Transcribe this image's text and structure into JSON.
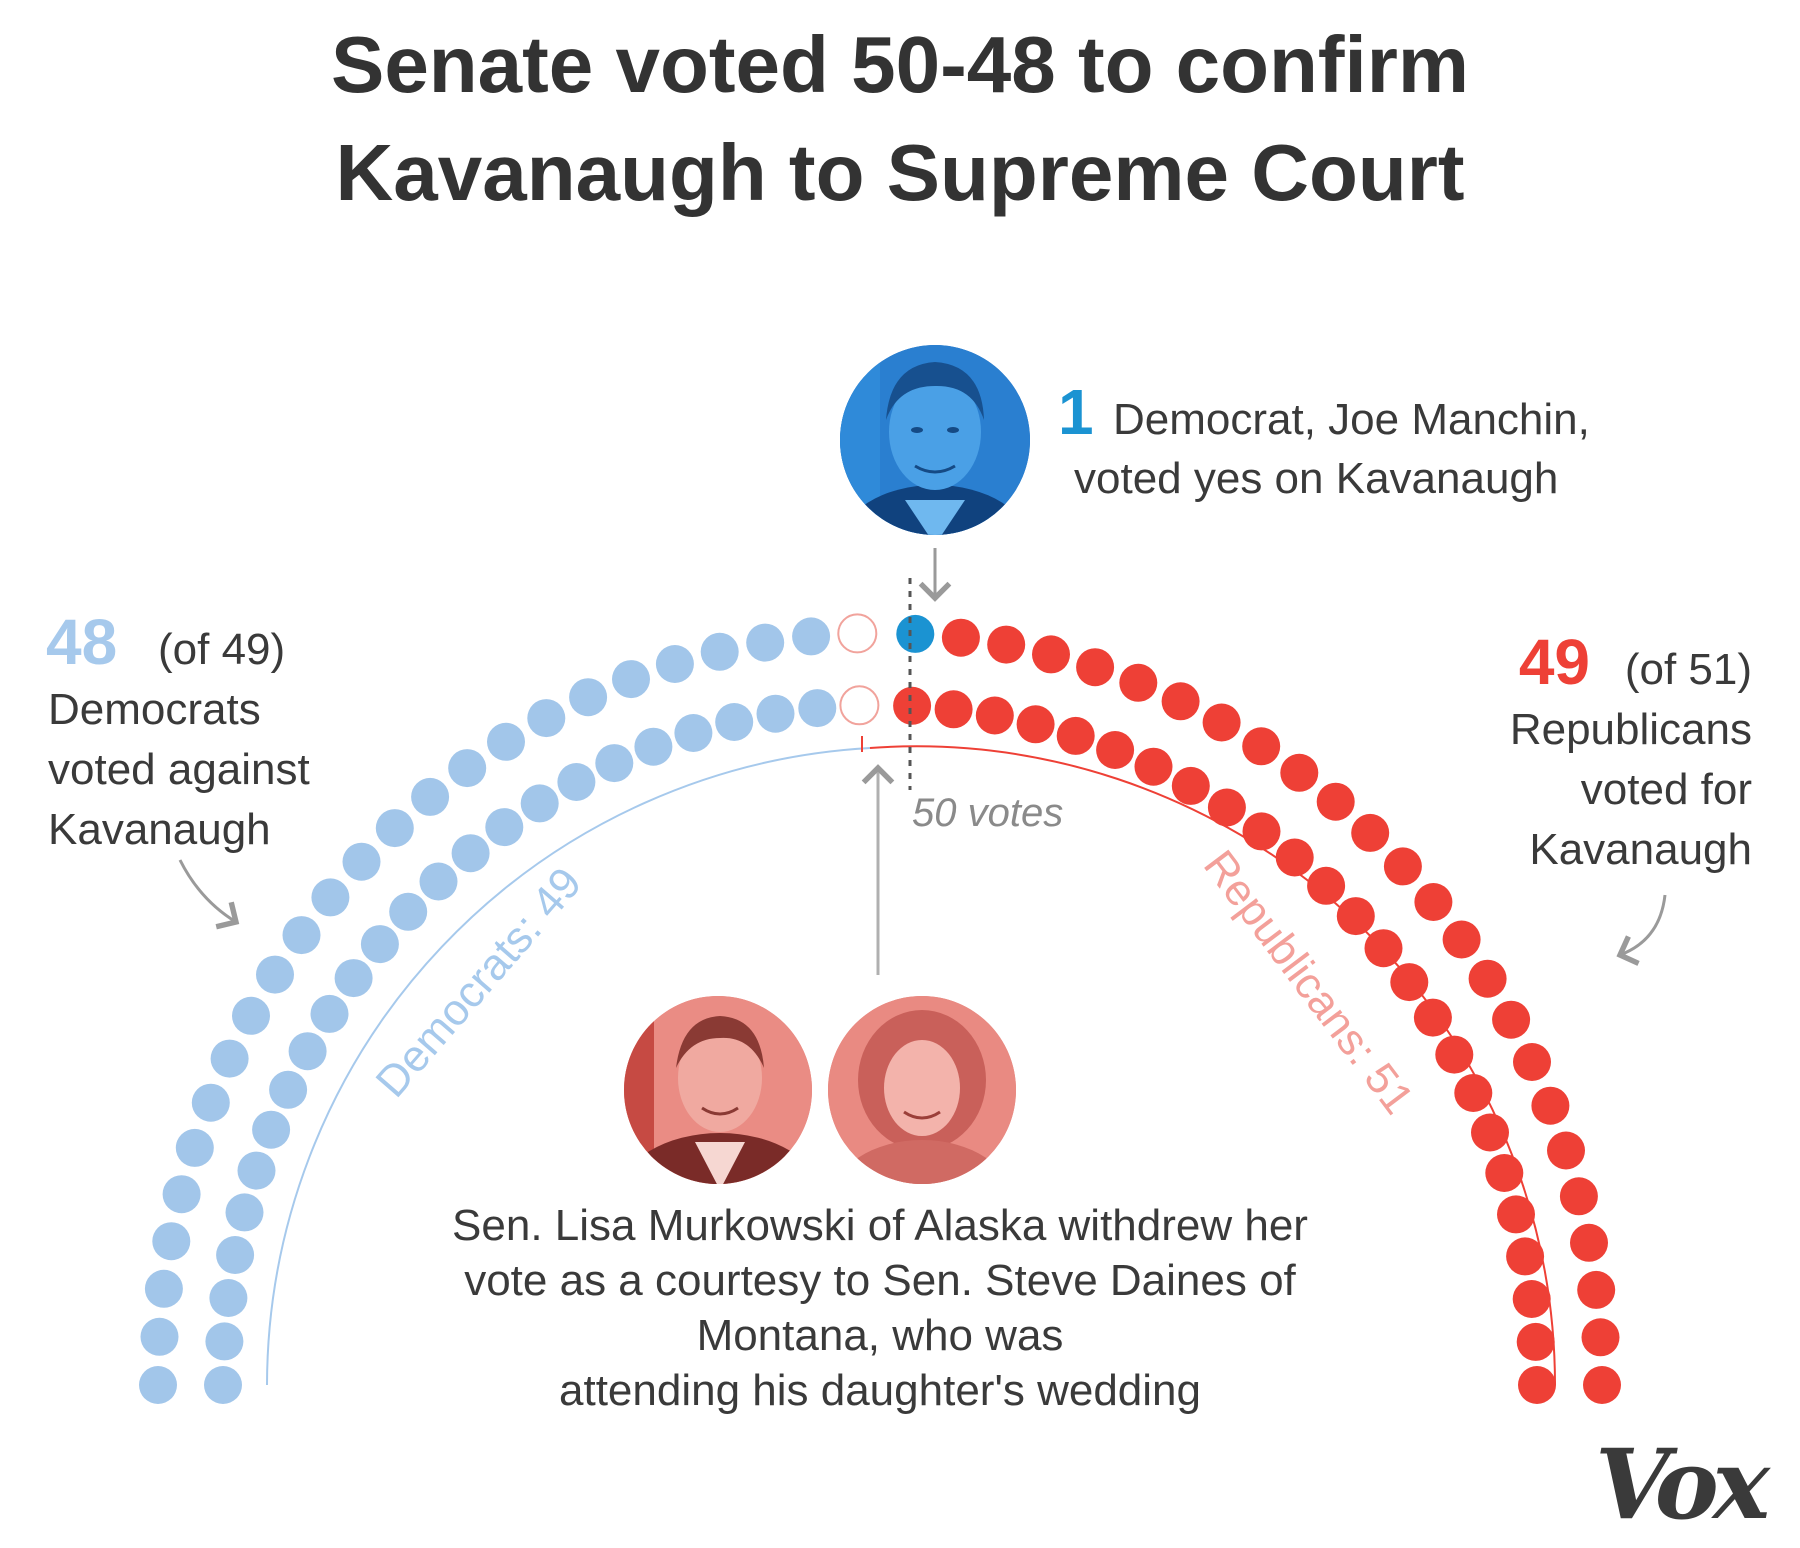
{
  "title_line1": "Senate voted 50-48 to confirm",
  "title_line2": "Kavanaugh to Supreme Court",
  "colors": {
    "dem": "#a2c6ea",
    "dem_text": "#a6c9ec",
    "dem_yes": "#1b93d2",
    "rep": "#ee4036",
    "rep_text": "#ee4036",
    "rep_label": "#f3a09a",
    "empty_stroke": "#f1a39c",
    "gray": "#8a8a8a",
    "text": "#3a3a3a"
  },
  "manchin": {
    "number": "1",
    "line1": "Democrat, Joe Manchin,",
    "line2": "voted yes on Kavanaugh",
    "photo_icon": "senator-portrait-icon"
  },
  "dems_block": {
    "number": "48",
    "of": "(of 49)",
    "line1": "Democrats",
    "line2": "voted against",
    "line3": "Kavanaugh"
  },
  "reps_block": {
    "number": "49",
    "of": "(of 51)",
    "line1": "Republicans",
    "line2": "voted for",
    "line3": "Kavanaugh"
  },
  "threshold_label": "50 votes",
  "arc_labels": {
    "dems": "Democrats: 49",
    "reps": "Republicans: 51"
  },
  "murkowski_note": [
    "Sen. Lisa Murkowski of Alaska withdrew her",
    "vote as a courtesy to Sen. Steve Daines of",
    "Montana, who was",
    "attending his daughter's wedding"
  ],
  "logo": "Vox",
  "chart_data": {
    "type": "parliament",
    "seats_total": 100,
    "rows": 2,
    "series": [
      {
        "name": "Democrats: 49",
        "party": "Democrats",
        "values": [
          {
            "vote": "no",
            "count": 48
          },
          {
            "vote": "yes",
            "count": 1
          }
        ]
      },
      {
        "name": "Republicans: 51",
        "party": "Republicans",
        "values": [
          {
            "vote": "yes",
            "count": 49
          },
          {
            "vote": "absent/withdrawn",
            "count": 2
          }
        ]
      }
    ],
    "result": {
      "yes": 50,
      "no": 48,
      "not_voting": 2
    },
    "threshold": 50
  }
}
